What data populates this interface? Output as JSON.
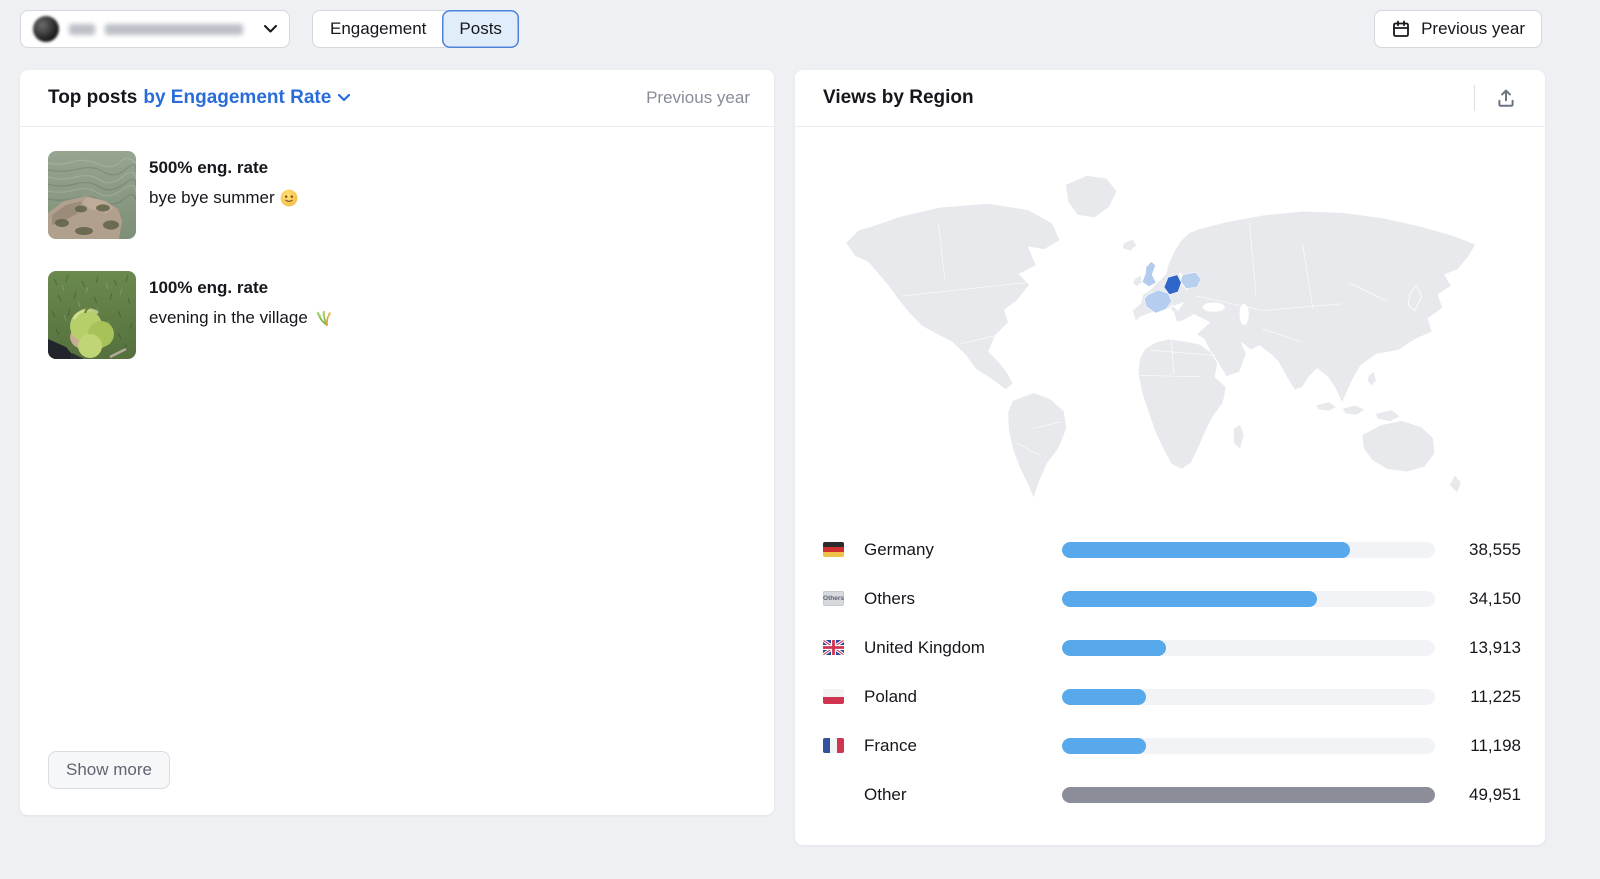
{
  "topbar": {
    "account_selector": {
      "name_redacted": true
    },
    "view_tabs": [
      {
        "label": "Engagement",
        "selected": false
      },
      {
        "label": "Posts",
        "selected": true
      }
    ],
    "period_button": {
      "label": "Previous year"
    }
  },
  "top_posts_panel": {
    "title": "Top posts",
    "sort_by_label": "by Engagement Rate",
    "period_label": "Previous year",
    "posts": [
      {
        "rate": "500% eng. rate",
        "caption": "bye bye summer 🙂",
        "caption_text": "bye bye summer",
        "emoji": "slightly-smiling-face"
      },
      {
        "rate": "100% eng. rate",
        "caption": "evening in the village 🌾",
        "caption_text": "evening in the village",
        "emoji": "sheaf-of-rice"
      }
    ],
    "show_more_label": "Show more"
  },
  "views_by_region_panel": {
    "title": "Views by Region",
    "map_base_color": "#e7e9ed",
    "map_highlights": {
      "de": "#2e66c9",
      "gb": "#b3cbee",
      "fr": "#b5cdee",
      "pl": "#b9cfee"
    }
  },
  "chart_data": {
    "type": "bar",
    "orientation": "horizontal",
    "title": "Views by Region",
    "categories": [
      "Germany",
      "Others",
      "United Kingdom",
      "Poland",
      "France",
      "Other"
    ],
    "values": [
      38555,
      34150,
      13913,
      11225,
      11198,
      49951
    ],
    "value_labels": [
      "38,555",
      "34,150",
      "13,913",
      "11,225",
      "11,198",
      "49,951"
    ],
    "flags": [
      "de",
      "others",
      "gb",
      "pl",
      "fr",
      null
    ],
    "bar_colors": [
      "#57a9ec",
      "#57a9ec",
      "#57a9ec",
      "#57a9ec",
      "#57a9ec",
      "#8b8e99"
    ],
    "track_color": "#f1f3f7",
    "xmax": 49951,
    "grid": false,
    "legend": false
  },
  "flags": {
    "de": {
      "type": "h",
      "colors": [
        "#2b2b2b",
        "#d02f2f",
        "#f0c24b"
      ]
    },
    "pl": {
      "type": "h",
      "colors": [
        "#f2f3f5",
        "#cf3450"
      ]
    },
    "fr": {
      "type": "v",
      "colors": [
        "#31539e",
        "#f2f3f5",
        "#cf3450"
      ]
    },
    "gb": {
      "type": "uj",
      "colors": [
        "#2b4a9c",
        "#ffffff",
        "#cf3450"
      ]
    },
    "others": {
      "type": "badge",
      "label": "Others",
      "bg": "#d6d9de",
      "fg": "#5a6070"
    }
  },
  "colors": {
    "accent_blue": "#2a6dd9",
    "bar_blue": "#57a9ec",
    "bar_gray": "#8b8e99",
    "page_bg": "#eef0f3",
    "muted_text": "#878c98"
  }
}
